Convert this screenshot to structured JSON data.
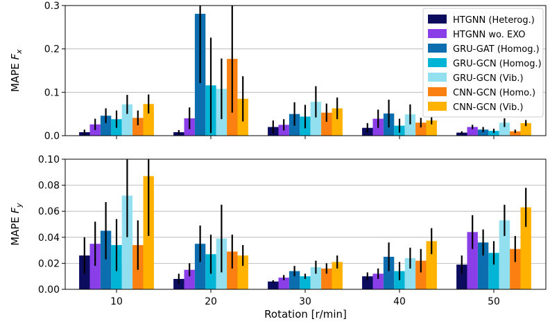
{
  "chart_data": [
    {
      "type": "bar",
      "ylabel_prefix": "MAPE ",
      "ylabel_var": "F",
      "ylabel_sub": "x",
      "xlabel": "",
      "categories": [
        "10",
        "20",
        "30",
        "40",
        "50"
      ],
      "ylim": [
        0,
        0.3
      ],
      "yticks": [
        "0.0",
        "0.1",
        "0.2",
        "0.3"
      ],
      "grid": "horizontal",
      "legend_position": "top-right",
      "series": [
        {
          "name": "HTGNN (Heterog.)",
          "color": "#0c0c5e",
          "values": [
            0.008,
            0.008,
            0.02,
            0.018,
            0.007
          ],
          "errors": [
            0.006,
            0.005,
            0.015,
            0.011,
            0.003
          ]
        },
        {
          "name": "HTGNN wo. EXO",
          "color": "#8a3ee8",
          "values": [
            0.026,
            0.04,
            0.025,
            0.039,
            0.02
          ],
          "errors": [
            0.013,
            0.025,
            0.013,
            0.021,
            0.005
          ]
        },
        {
          "name": "GRU-GAT (Homog.)",
          "color": "#0d6eaf",
          "values": [
            0.046,
            0.281,
            0.05,
            0.051,
            0.014
          ],
          "errors": [
            0.017,
            0.16,
            0.027,
            0.032,
            0.006
          ]
        },
        {
          "name": "GRU-GCN (Homog.)",
          "color": "#00b4d6",
          "values": [
            0.038,
            0.116,
            0.044,
            0.023,
            0.011
          ],
          "errors": [
            0.02,
            0.11,
            0.027,
            0.016,
            0.005
          ]
        },
        {
          "name": "GRU-GCN (Vib.)",
          "color": "#92dff0",
          "values": [
            0.072,
            0.108,
            0.078,
            0.049,
            0.03
          ],
          "errors": [
            0.022,
            0.07,
            0.036,
            0.023,
            0.01
          ]
        },
        {
          "name": "CNN-GCN (Homo.)",
          "color": "#f98011",
          "values": [
            0.041,
            0.177,
            0.053,
            0.03,
            0.01
          ],
          "errors": [
            0.017,
            0.124,
            0.021,
            0.011,
            0.004
          ]
        },
        {
          "name": "CNN-GCN (Vib.)",
          "color": "#ffb300",
          "values": [
            0.073,
            0.085,
            0.063,
            0.035,
            0.029
          ],
          "errors": [
            0.022,
            0.052,
            0.025,
            0.009,
            0.007
          ]
        }
      ]
    },
    {
      "type": "bar",
      "ylabel_prefix": "MAPE ",
      "ylabel_var": "F",
      "ylabel_sub": "y",
      "xlabel": "Rotation [r/min]",
      "categories": [
        "10",
        "20",
        "30",
        "40",
        "50"
      ],
      "ylim": [
        0,
        0.1
      ],
      "yticks": [
        "0.00",
        "0.02",
        "0.04",
        "0.06",
        "0.08",
        "0.10"
      ],
      "grid": "horizontal",
      "series": [
        {
          "name": "HTGNN (Heterog.)",
          "color": "#0c0c5e",
          "values": [
            0.026,
            0.008,
            0.006,
            0.01,
            0.019
          ],
          "errors": [
            0.014,
            0.004,
            0.001,
            0.003,
            0.007
          ]
        },
        {
          "name": "HTGNN wo. EXO",
          "color": "#8a3ee8",
          "values": [
            0.035,
            0.015,
            0.009,
            0.012,
            0.044
          ],
          "errors": [
            0.017,
            0.005,
            0.002,
            0.004,
            0.013
          ]
        },
        {
          "name": "GRU-GAT (Homog.)",
          "color": "#0d6eaf",
          "values": [
            0.045,
            0.035,
            0.014,
            0.025,
            0.036
          ],
          "errors": [
            0.022,
            0.014,
            0.004,
            0.011,
            0.01
          ]
        },
        {
          "name": "GRU-GCN (Homog.)",
          "color": "#00b4d6",
          "values": [
            0.034,
            0.027,
            0.01,
            0.014,
            0.028
          ],
          "errors": [
            0.02,
            0.015,
            0.002,
            0.007,
            0.009
          ]
        },
        {
          "name": "GRU-GCN (Vib.)",
          "color": "#92dff0",
          "values": [
            0.072,
            0.039,
            0.017,
            0.024,
            0.053
          ],
          "errors": [
            0.032,
            0.026,
            0.005,
            0.008,
            0.012
          ]
        },
        {
          "name": "CNN-GCN (Homo.)",
          "color": "#f98011",
          "values": [
            0.034,
            0.029,
            0.016,
            0.022,
            0.031
          ],
          "errors": [
            0.019,
            0.013,
            0.004,
            0.009,
            0.01
          ]
        },
        {
          "name": "CNN-GCN (Vib.)",
          "color": "#ffb300",
          "values": [
            0.087,
            0.026,
            0.021,
            0.037,
            0.063
          ],
          "errors": [
            0.046,
            0.008,
            0.005,
            0.01,
            0.015
          ]
        }
      ]
    }
  ]
}
